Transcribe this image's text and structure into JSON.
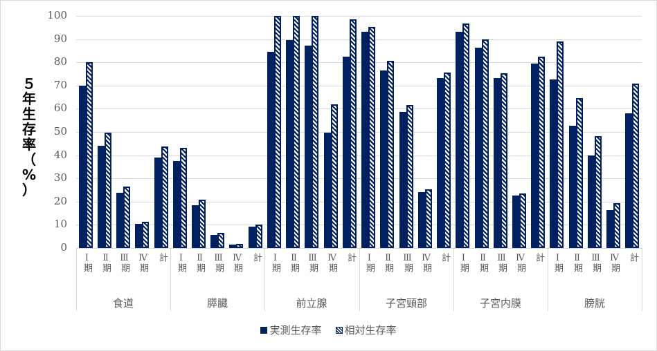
{
  "chart_data": {
    "type": "bar",
    "title": "",
    "ylabel": "５年生存率（%）",
    "xlabel": "",
    "ylim": [
      0,
      100
    ],
    "yticks": [
      0,
      10,
      20,
      30,
      40,
      50,
      60,
      70,
      80,
      90,
      100
    ],
    "grid": true,
    "legend_position": "bottom",
    "groups": [
      "食道",
      "膵臓",
      "前立腺",
      "子宮頸部",
      "子宮内膜",
      "膀胱"
    ],
    "stages": [
      "Ⅰ期",
      "Ⅱ期",
      "Ⅲ期",
      "Ⅳ期",
      "計"
    ],
    "series": [
      {
        "name": "実測生存率",
        "color": "#002060",
        "pattern": "solid",
        "values": [
          [
            70.0,
            44.0,
            23.9,
            10.3,
            38.9
          ],
          [
            37.6,
            18.5,
            5.6,
            1.6,
            9.1
          ],
          [
            84.4,
            89.5,
            87.1,
            49.8,
            82.4
          ],
          [
            93.1,
            76.6,
            58.5,
            24.1,
            73.1
          ],
          [
            93.3,
            86.2,
            73.1,
            22.6,
            79.6
          ],
          [
            72.7,
            52.6,
            40.0,
            16.4,
            58.1
          ]
        ]
      },
      {
        "name": "相対生存率",
        "color": "#002060",
        "pattern": "diagonal-hatch",
        "values": [
          [
            80.0,
            49.8,
            26.4,
            11.4,
            43.8
          ],
          [
            43.2,
            20.8,
            6.4,
            1.9,
            10.1
          ],
          [
            100.0,
            100.0,
            100.0,
            61.9,
            98.5
          ],
          [
            95.3,
            80.7,
            61.6,
            25.4,
            75.6
          ],
          [
            96.7,
            89.8,
            75.4,
            23.6,
            82.4
          ],
          [
            88.9,
            64.7,
            48.2,
            19.3,
            70.9
          ]
        ]
      }
    ]
  },
  "yaxis_label_chars": [
    "５",
    "年",
    "生",
    "存",
    "率",
    "（",
    "%",
    "）"
  ],
  "legend": [
    {
      "label": "実測生存率",
      "icon": "solid-square-icon"
    },
    {
      "label": "相対生存率",
      "icon": "hatched-square-icon"
    }
  ]
}
